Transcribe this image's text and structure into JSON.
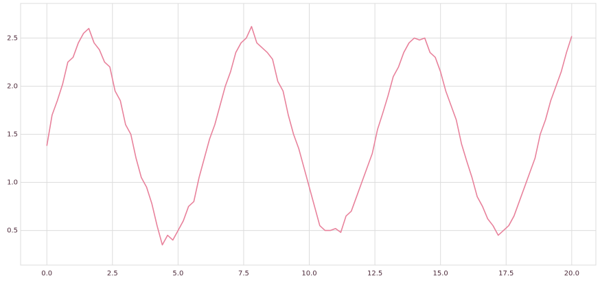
{
  "chart_data": {
    "type": "line",
    "x": [
      0,
      0.2,
      0.4,
      0.6,
      0.8,
      1.0,
      1.2,
      1.4,
      1.6,
      1.8,
      2.0,
      2.2,
      2.4,
      2.6,
      2.8,
      3.0,
      3.2,
      3.4,
      3.6,
      3.8,
      4.0,
      4.2,
      4.4,
      4.6,
      4.8,
      5.0,
      5.2,
      5.4,
      5.6,
      5.8,
      6.0,
      6.2,
      6.4,
      6.6,
      6.8,
      7.0,
      7.2,
      7.4,
      7.6,
      7.8,
      8.0,
      8.2,
      8.4,
      8.6,
      8.8,
      9.0,
      9.2,
      9.4,
      9.6,
      9.8,
      10.0,
      10.2,
      10.4,
      10.6,
      10.8,
      11.0,
      11.2,
      11.4,
      11.6,
      11.8,
      12.0,
      12.2,
      12.4,
      12.6,
      12.8,
      13.0,
      13.2,
      13.4,
      13.6,
      13.8,
      14.0,
      14.2,
      14.4,
      14.6,
      14.8,
      15.0,
      15.2,
      15.4,
      15.6,
      15.8,
      16.0,
      16.2,
      16.4,
      16.6,
      16.8,
      17.0,
      17.2,
      17.4,
      17.6,
      17.8,
      18.0,
      18.2,
      18.4,
      18.6,
      18.8,
      19.0,
      19.2,
      19.4,
      19.6,
      19.8,
      20.0
    ],
    "series": [
      {
        "color": "#e8819b",
        "values": [
          1.38,
          1.7,
          1.85,
          2.02,
          2.25,
          2.3,
          2.45,
          2.55,
          2.6,
          2.45,
          2.38,
          2.25,
          2.2,
          1.95,
          1.85,
          1.6,
          1.5,
          1.25,
          1.05,
          0.95,
          0.78,
          0.55,
          0.35,
          0.45,
          0.4,
          0.5,
          0.6,
          0.75,
          0.8,
          1.05,
          1.25,
          1.45,
          1.6,
          1.8,
          2.0,
          2.15,
          2.35,
          2.45,
          2.5,
          2.62,
          2.45,
          2.4,
          2.35,
          2.28,
          2.05,
          1.95,
          1.7,
          1.5,
          1.35,
          1.15,
          0.95,
          0.75,
          0.55,
          0.5,
          0.5,
          0.52,
          0.48,
          0.65,
          0.7,
          0.85,
          1.0,
          1.15,
          1.3,
          1.55,
          1.72,
          1.9,
          2.1,
          2.2,
          2.35,
          2.45,
          2.5,
          2.48,
          2.5,
          2.35,
          2.3,
          2.15,
          1.95,
          1.8,
          1.65,
          1.4,
          1.22,
          1.05,
          0.85,
          0.75,
          0.62,
          0.55,
          0.45,
          0.5,
          0.55,
          0.65,
          0.8,
          0.95,
          1.1,
          1.25,
          1.5,
          1.65,
          1.85,
          2.0,
          2.15,
          2.35,
          2.52
        ]
      }
    ],
    "xlim": [
      -1,
      20.92
    ],
    "ylim": [
      0.14,
      2.86
    ],
    "xticks": [
      {
        "value": 0,
        "label": "0.0"
      },
      2.5,
      {
        "value": 5,
        "label": "5.0"
      },
      7.5,
      {
        "value": 10,
        "label": "10.0"
      },
      12.5,
      {
        "value": 15,
        "label": "15.0"
      },
      17.5,
      {
        "value": 20,
        "label": "20.0"
      }
    ],
    "yticks": [
      0.5,
      {
        "value": 1,
        "label": "1.0"
      },
      1.5,
      {
        "value": 2,
        "label": "2.0"
      },
      2.5
    ],
    "grid": true
  }
}
